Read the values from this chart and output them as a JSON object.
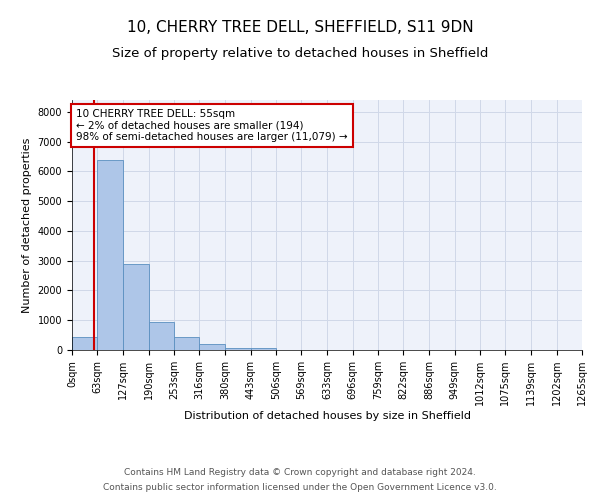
{
  "title1": "10, CHERRY TREE DELL, SHEFFIELD, S11 9DN",
  "title2": "Size of property relative to detached houses in Sheffield",
  "xlabel": "Distribution of detached houses by size in Sheffield",
  "ylabel": "Number of detached properties",
  "footer1": "Contains HM Land Registry data © Crown copyright and database right 2024.",
  "footer2": "Contains public sector information licensed under the Open Government Licence v3.0.",
  "annotation_line1": "10 CHERRY TREE DELL: 55sqm",
  "annotation_line2": "← 2% of detached houses are smaller (194)",
  "annotation_line3": "98% of semi-detached houses are larger (11,079) →",
  "bar_edges": [
    0,
    63,
    127,
    190,
    253,
    316,
    380,
    443,
    506,
    569,
    633,
    696,
    759,
    822,
    886,
    949,
    1012,
    1075,
    1139,
    1202,
    1265
  ],
  "bar_heights": [
    430,
    6400,
    2900,
    950,
    430,
    190,
    80,
    60,
    0,
    0,
    0,
    0,
    0,
    0,
    0,
    0,
    0,
    0,
    0,
    0
  ],
  "bar_color": "#aec6e8",
  "bar_edgecolor": "#5a8fc0",
  "property_x": 55,
  "red_line_color": "#cc0000",
  "annotation_box_color": "#cc0000",
  "ylim": [
    0,
    8400
  ],
  "xlim": [
    0,
    1265
  ],
  "yticks": [
    0,
    1000,
    2000,
    3000,
    4000,
    5000,
    6000,
    7000,
    8000
  ],
  "tick_labels": [
    "0sqm",
    "63sqm",
    "127sqm",
    "190sqm",
    "253sqm",
    "316sqm",
    "380sqm",
    "443sqm",
    "506sqm",
    "569sqm",
    "633sqm",
    "696sqm",
    "759sqm",
    "822sqm",
    "886sqm",
    "949sqm",
    "1012sqm",
    "1075sqm",
    "1139sqm",
    "1202sqm",
    "1265sqm"
  ],
  "grid_color": "#d0d8e8",
  "bg_color": "#eef2fa",
  "title1_fontsize": 11,
  "title2_fontsize": 9.5,
  "axis_label_fontsize": 8,
  "tick_fontsize": 7,
  "footer_fontsize": 6.5,
  "annotation_fontsize": 7.5
}
